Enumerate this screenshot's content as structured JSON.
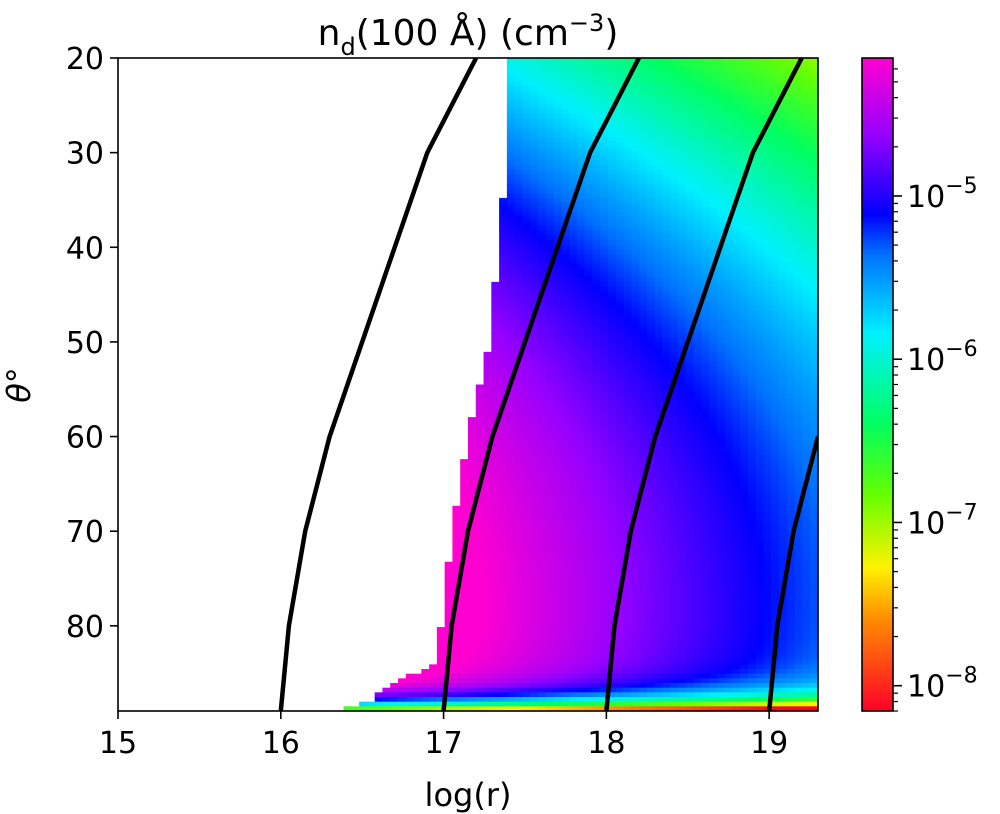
{
  "chart_data": {
    "type": "heatmap",
    "title": "n",
    "title_subscript": "d",
    "title_rest": "(100 Å) (cm",
    "title_superscript": "−3",
    "title_close": ")",
    "xlabel": "log(r)",
    "ylabel": "θ°",
    "xlim": [
      15,
      19.3
    ],
    "ylim": [
      89,
      20
    ],
    "x_ticks": [
      {
        "value": 15,
        "label": "15"
      },
      {
        "value": 16,
        "label": "16"
      },
      {
        "value": 17,
        "label": "17"
      },
      {
        "value": 18,
        "label": "18"
      },
      {
        "value": 19,
        "label": "19"
      }
    ],
    "y_ticks": [
      {
        "value": 20,
        "label": "20"
      },
      {
        "value": 30,
        "label": "30"
      },
      {
        "value": 40,
        "label": "40"
      },
      {
        "value": 50,
        "label": "50"
      },
      {
        "value": 60,
        "label": "60"
      },
      {
        "value": 70,
        "label": "70"
      },
      {
        "value": 80,
        "label": "80"
      }
    ],
    "colorbar": {
      "scale": "log",
      "colormap": "gist_rainbow",
      "range": [
        7e-09,
        7e-05
      ],
      "ticks": [
        {
          "value": 1e-08,
          "base": "10",
          "exp": "−8"
        },
        {
          "value": 1e-07,
          "base": "10",
          "exp": "−7"
        },
        {
          "value": 1e-06,
          "base": "10",
          "exp": "−6"
        },
        {
          "value": 1e-05,
          "base": "10",
          "exp": "−5"
        }
      ]
    },
    "data_region_left_boundary": [
      {
        "theta": 89,
        "logr": 16.35
      },
      {
        "theta": 88,
        "logr": 16.55
      },
      {
        "theta": 86,
        "logr": 16.68
      },
      {
        "theta": 84,
        "logr": 16.95
      },
      {
        "theta": 78,
        "logr": 17.0
      },
      {
        "theta": 70,
        "logr": 17.05
      },
      {
        "theta": 60,
        "logr": 17.15
      },
      {
        "theta": 50,
        "logr": 17.28
      },
      {
        "theta": 40,
        "logr": 17.34
      },
      {
        "theta": 30,
        "logr": 17.39
      },
      {
        "theta": 20,
        "logr": 17.41
      }
    ],
    "contour_lines": [
      {
        "points": [
          [
            89,
            16.0
          ],
          [
            80,
            16.05
          ],
          [
            70,
            16.15
          ],
          [
            60,
            16.3
          ],
          [
            50,
            16.5
          ],
          [
            40,
            16.7
          ],
          [
            30,
            16.9
          ],
          [
            20,
            17.2
          ]
        ]
      },
      {
        "points": [
          [
            89,
            17.0
          ],
          [
            80,
            17.05
          ],
          [
            70,
            17.15
          ],
          [
            60,
            17.3
          ],
          [
            50,
            17.5
          ],
          [
            40,
            17.7
          ],
          [
            30,
            17.9
          ],
          [
            20,
            18.2
          ]
        ]
      },
      {
        "points": [
          [
            89,
            18.0
          ],
          [
            80,
            18.05
          ],
          [
            70,
            18.15
          ],
          [
            60,
            18.3
          ],
          [
            50,
            18.5
          ],
          [
            40,
            18.7
          ],
          [
            30,
            18.9
          ],
          [
            20,
            19.2
          ]
        ]
      },
      {
        "points": [
          [
            89,
            19.0
          ],
          [
            80,
            19.05
          ],
          [
            70,
            19.15
          ],
          [
            60,
            19.3
          ]
        ]
      }
    ],
    "grid": false
  }
}
